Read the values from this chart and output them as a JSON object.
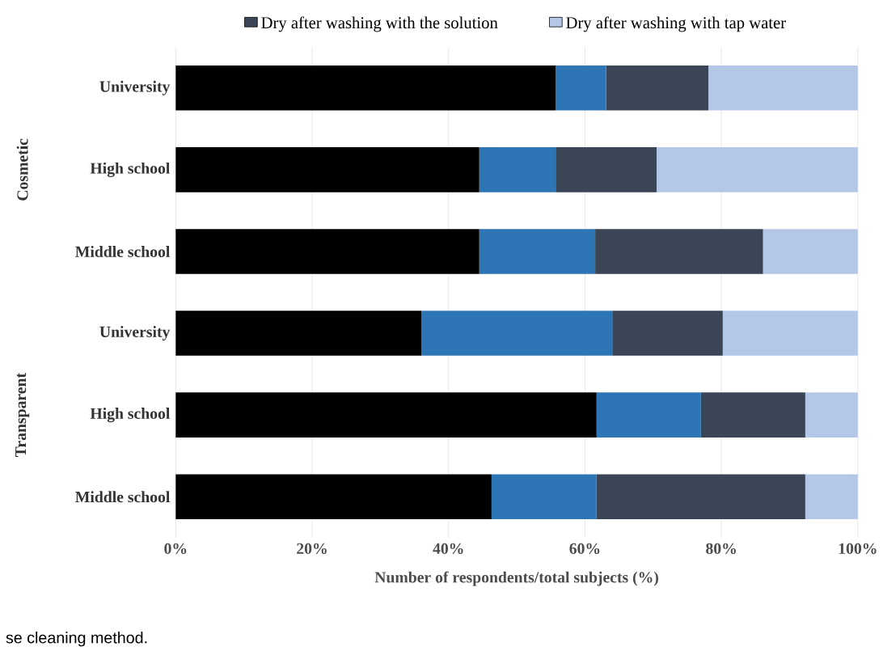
{
  "chart_data": {
    "type": "bar",
    "orientation": "horizontal",
    "stacked": true,
    "categories": [
      "University",
      "High school",
      "Middle school",
      "University",
      "High school",
      "Middle school"
    ],
    "series": [
      {
        "color": "#000000",
        "values": [
          55.7,
          44.5,
          44.5,
          36,
          61.7,
          46.3
        ]
      },
      {
        "color": "#2e75b6",
        "values": [
          7.4,
          11.2,
          17,
          28,
          15.3,
          15.4
        ]
      },
      {
        "name": "Dry after washing with the solution",
        "color": "#3a4656",
        "values": [
          15,
          14.8,
          24.6,
          16.2,
          15.3,
          30.6
        ]
      },
      {
        "name": "Dry after washing with tap water",
        "color": "#b4c7e7",
        "values": [
          21.9,
          29.5,
          13.9,
          19.8,
          7.7,
          7.7
        ]
      }
    ],
    "xlim": [
      0,
      100
    ],
    "xticks": [
      {
        "value": 0,
        "label": "0%"
      },
      {
        "value": 20,
        "label": "20%"
      },
      {
        "value": 40,
        "label": "40%"
      },
      {
        "value": 60,
        "label": "60%"
      },
      {
        "value": 80,
        "label": "80%"
      },
      {
        "value": 100,
        "label": "100%"
      }
    ],
    "xlabel": "Number of respondents/total subjects (%)",
    "grid": "x",
    "legend": "top",
    "annotations": [
      "Cosmetic",
      "Transparent",
      "se cleaning method."
    ]
  }
}
